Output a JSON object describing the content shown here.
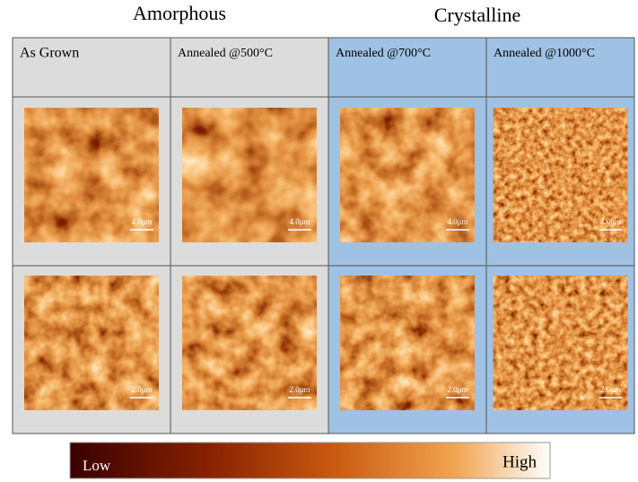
{
  "headers": [
    "Amorphous",
    "Crystalline"
  ],
  "columns": [
    "As Grown",
    "Annealed @500°C",
    "Annealed @700°C",
    "Annealed @1000°C"
  ],
  "rows": [
    {
      "scale_labels": [
        "4.0μm",
        "4.0μm",
        "4.0μm",
        "4.0μm"
      ]
    },
    {
      "scale_labels": [
        "2.0μm",
        "2.0μm",
        "2.0μm",
        "2.0μm"
      ]
    }
  ],
  "colorbar": {
    "low": "Low",
    "high": "High"
  }
}
